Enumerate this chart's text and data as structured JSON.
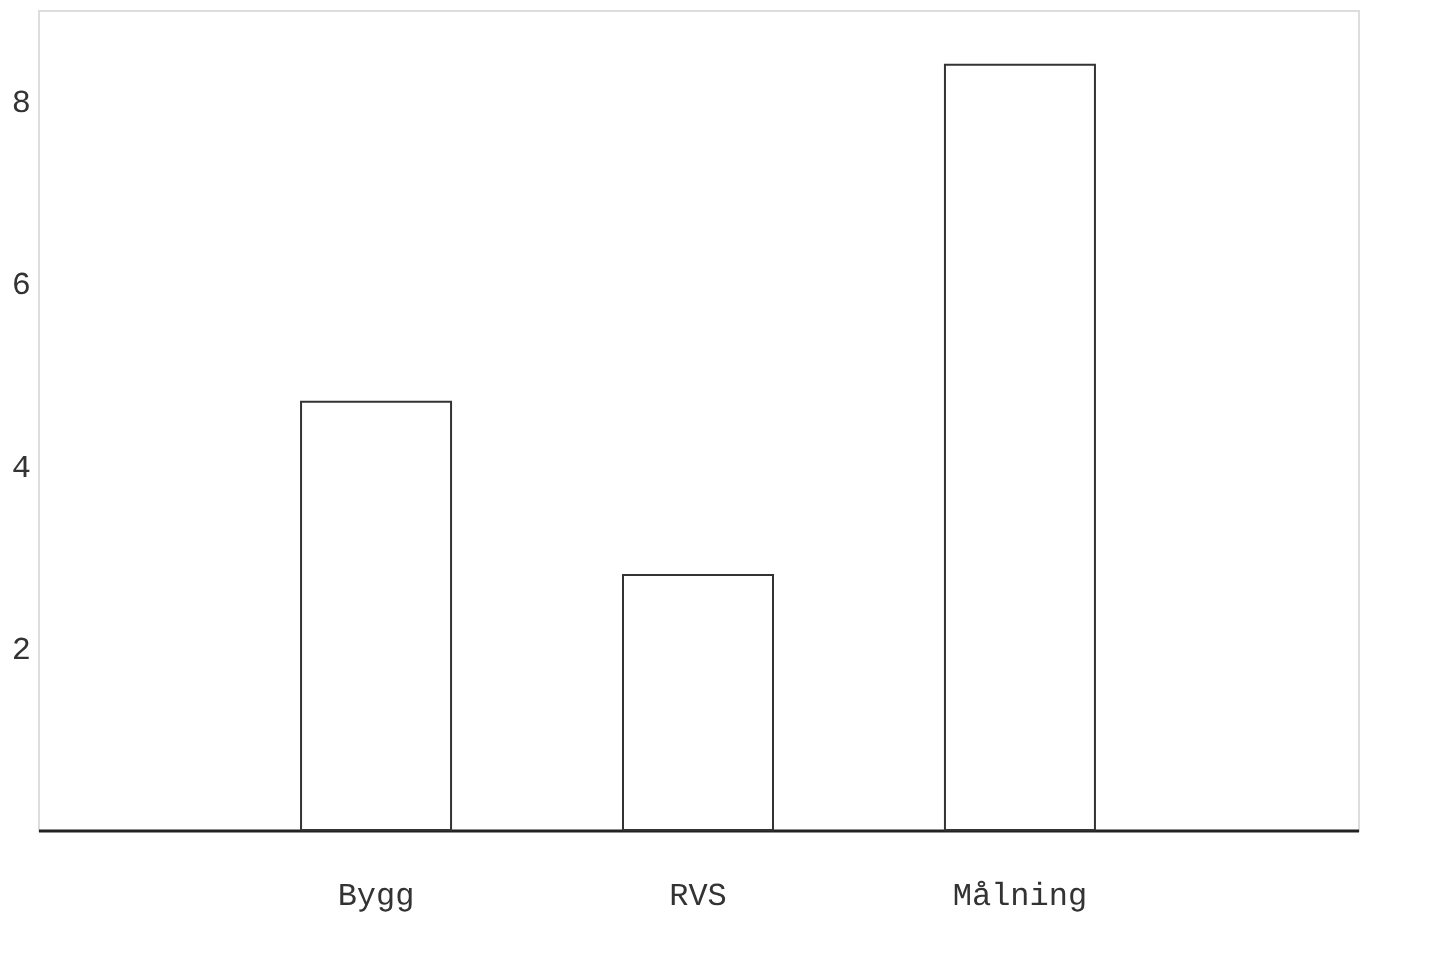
{
  "chart_data": {
    "type": "bar",
    "categories": [
      "Bygg",
      "RVS",
      "Målning"
    ],
    "values": [
      4.7,
      2.8,
      8.4
    ],
    "color": "#ffffff",
    "ylim": [
      0,
      9
    ],
    "yticks": [
      2,
      4,
      6,
      8
    ],
    "grid": false,
    "legend": false
  }
}
